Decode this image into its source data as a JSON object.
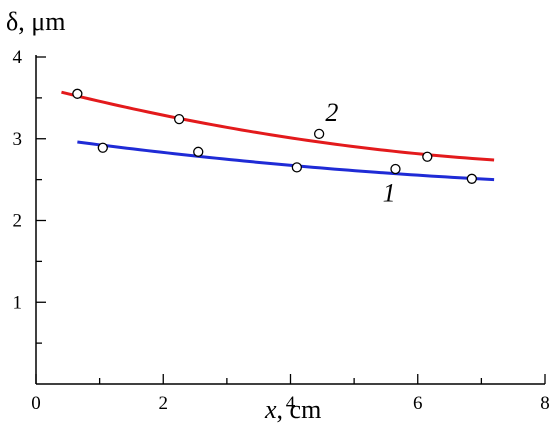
{
  "chart_data": {
    "type": "scatter",
    "xlabel_var": "x",
    "xlabel_unit": ", cm",
    "ylabel": "δ, μm",
    "xlim": [
      0,
      8
    ],
    "ylim": [
      0,
      4
    ],
    "xticks": [
      0,
      2,
      4,
      6,
      8
    ],
    "yticks": [
      1,
      2,
      3,
      4
    ],
    "grid": false,
    "series": [
      {
        "label": "1",
        "color": "#1f2bd6",
        "fit_x": [
          0.65,
          7.2
        ],
        "fit_y": [
          2.96,
          2.5
        ],
        "points": [
          {
            "x": 1.05,
            "y": 2.89
          },
          {
            "x": 2.55,
            "y": 2.84
          },
          {
            "x": 4.1,
            "y": 2.65
          },
          {
            "x": 5.65,
            "y": 2.63
          },
          {
            "x": 6.85,
            "y": 2.51
          }
        ]
      },
      {
        "label": "2",
        "color": "#e31a1c",
        "fit_x": [
          0.4,
          7.2
        ],
        "fit_y": [
          3.57,
          2.74
        ],
        "points": [
          {
            "x": 0.65,
            "y": 3.55
          },
          {
            "x": 2.25,
            "y": 3.24
          },
          {
            "x": 4.45,
            "y": 3.06
          },
          {
            "x": 6.15,
            "y": 2.78
          }
        ]
      }
    ]
  }
}
